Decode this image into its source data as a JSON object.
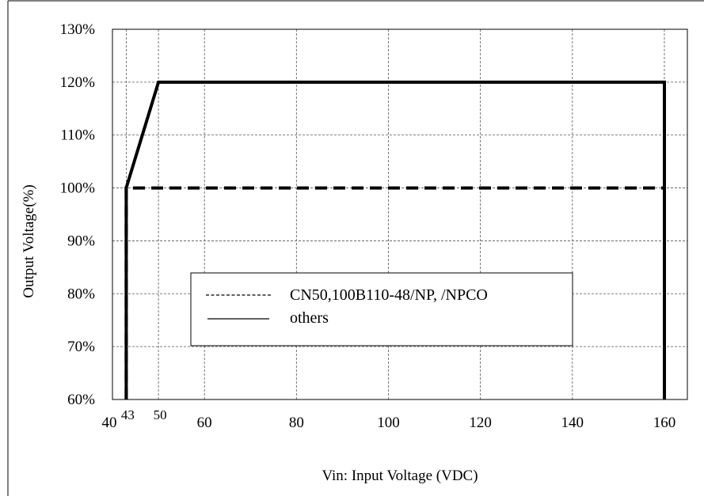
{
  "chart_data": {
    "type": "line",
    "title": "",
    "xlabel": "Vin: Input Voltage (VDC)",
    "ylabel": "Output Voltage(%)",
    "xlim": [
      40,
      165
    ],
    "ylim": [
      60,
      130
    ],
    "x_ticks": [
      {
        "value": 40,
        "label": "40"
      },
      {
        "value": 60,
        "label": "60"
      },
      {
        "value": 80,
        "label": "80"
      },
      {
        "value": 100,
        "label": "100"
      },
      {
        "value": 120,
        "label": "120"
      },
      {
        "value": 140,
        "label": "140"
      },
      {
        "value": 160,
        "label": "160"
      }
    ],
    "x_extra_ticks": [
      {
        "value": 43,
        "label": "43"
      },
      {
        "value": 50,
        "label": "50"
      }
    ],
    "y_ticks": [
      {
        "value": 60,
        "label": "60%"
      },
      {
        "value": 70,
        "label": "70%"
      },
      {
        "value": 80,
        "label": "80%"
      },
      {
        "value": 90,
        "label": "90%"
      },
      {
        "value": 100,
        "label": "100%"
      },
      {
        "value": 110,
        "label": "110%"
      },
      {
        "value": 120,
        "label": "120%"
      },
      {
        "value": 130,
        "label": "130%"
      }
    ],
    "grid": true,
    "legend_position": "center-left",
    "series": [
      {
        "name": "CN50,100B110-48/NP, /NPCO",
        "style": "dashed",
        "color": "#000000",
        "points": [
          [
            43,
            60
          ],
          [
            43,
            100
          ],
          [
            160,
            100
          ],
          [
            160,
            60
          ]
        ]
      },
      {
        "name": "others",
        "style": "solid",
        "color": "#000000",
        "points": [
          [
            43,
            60
          ],
          [
            43,
            100
          ],
          [
            50,
            120
          ],
          [
            160,
            120
          ],
          [
            160,
            60
          ]
        ]
      }
    ]
  }
}
